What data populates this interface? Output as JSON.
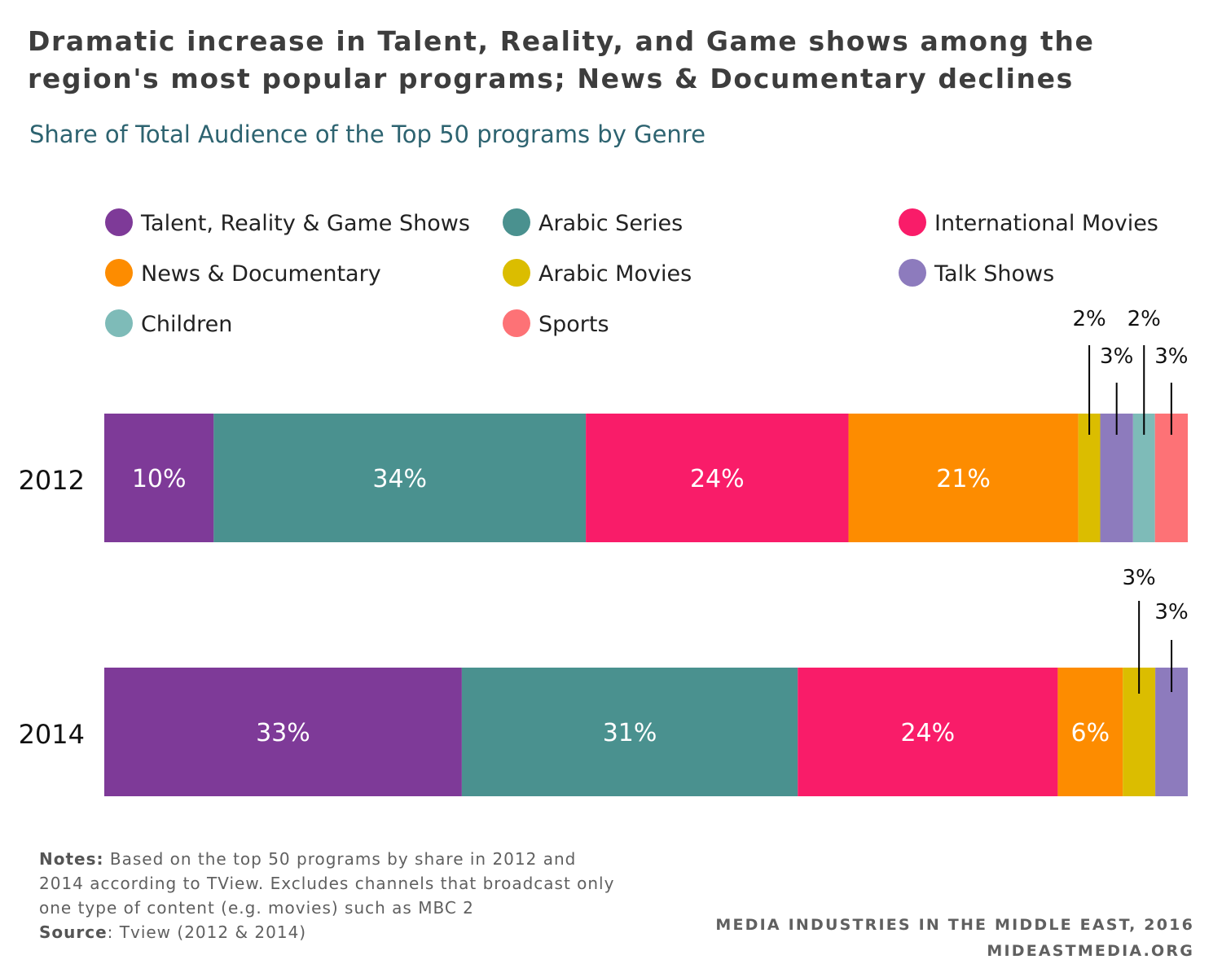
{
  "header": {
    "title": "Dramatic increase in Talent, Reality, and Game shows among the region's most popular programs; News & Documentary declines",
    "subtitle": "Share of Total Audience of the Top 50 programs by Genre"
  },
  "notes": {
    "notes_label": "Notes:",
    "notes_text": "Based on the top 50 programs by share in 2012 and 2014 according to TView. Excludes channels that broadcast only one type of content (e.g. movies) such as MBC 2",
    "source_label": "Source",
    "source_text": ": Tview (2012 & 2014)"
  },
  "footer": {
    "line1": "MEDIA INDUSTRIES IN THE MIDDLE EAST, 2016",
    "line2": "MIDEASTMEDIA.ORG"
  },
  "chart_data": {
    "type": "bar",
    "orientation": "horizontal",
    "stacked": true,
    "normalized": true,
    "grid": false,
    "legend_position": "top",
    "categories": [
      "2012",
      "2014"
    ],
    "series": [
      {
        "name": "Talent, Reality & Game Shows",
        "color": "#7e3a98",
        "values": [
          10,
          33
        ]
      },
      {
        "name": "Arabic Series",
        "color": "#4a918f",
        "values": [
          34,
          31
        ]
      },
      {
        "name": "International Movies",
        "color": "#f91c69",
        "values": [
          24,
          24
        ]
      },
      {
        "name": "News & Documentary",
        "color": "#fd8c00",
        "values": [
          21,
          6
        ]
      },
      {
        "name": "Arabic Movies",
        "color": "#dbbd00",
        "values": [
          2,
          3
        ]
      },
      {
        "name": "Talk Shows",
        "color": "#8d7bbd",
        "values": [
          3,
          3
        ]
      },
      {
        "name": "Children",
        "color": "#7ebbb8",
        "values": [
          2,
          0
        ]
      },
      {
        "name": "Sports",
        "color": "#fd7276",
        "values": [
          3,
          0
        ]
      }
    ],
    "labels": [
      [
        "10%",
        "34%",
        "24%",
        "21%",
        "2%",
        "3%",
        "2%",
        "3%"
      ],
      [
        "33%",
        "31%",
        "24%",
        "6%",
        "3%",
        "3%",
        "",
        ""
      ]
    ]
  }
}
